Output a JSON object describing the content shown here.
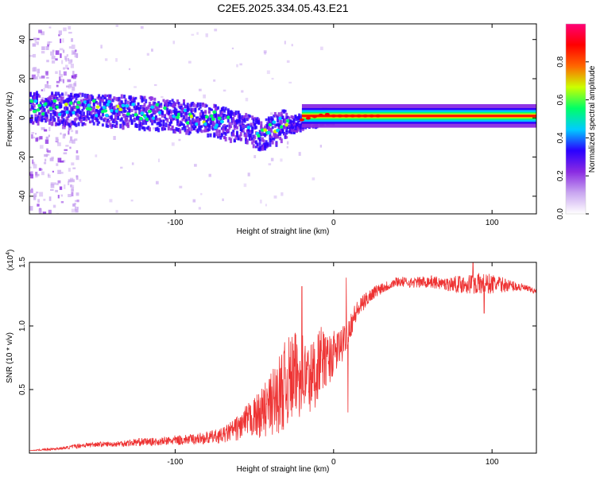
{
  "title": "C2E5.2025.334.05.43.E21",
  "chart_data": [
    {
      "type": "heatmap",
      "title": "C2E5.2025.334.05.43.E21",
      "xlabel": "Height of straight line (km)",
      "ylabel": "Frequency (Hz)",
      "xlim": [
        -192,
        128
      ],
      "ylim": [
        -49,
        48
      ],
      "x_ticks": [
        -100,
        0,
        100
      ],
      "x_tick_labels": [
        "-100",
        "0",
        "100"
      ],
      "y_ticks": [
        -40,
        -20,
        0,
        20,
        40
      ],
      "y_tick_labels": [
        "-40",
        "-20",
        "0",
        "20",
        "40"
      ],
      "colorbar": {
        "label": "Normalized spectral amplitude",
        "range": [
          0,
          1
        ],
        "ticks": [
          0.0,
          0.2,
          0.4,
          0.6,
          0.8
        ],
        "tick_labels": [
          "0.0",
          "0.2",
          "0.4",
          "0.6",
          "0.8"
        ],
        "colors": [
          "#ffffff",
          "#c9a6f0",
          "#8a2be2",
          "#2a00ff",
          "#00ccff",
          "#00ff66",
          "#ccff00",
          "#ff6600",
          "#ff0000",
          "#ff0077"
        ]
      },
      "ridge": {
        "x": [
          -192,
          -160,
          -130,
          -100,
          -80,
          -60,
          -45,
          -35,
          -25,
          -15,
          -5,
          0,
          10,
          30,
          60,
          90,
          128
        ],
        "frequency": [
          6,
          5,
          4,
          2,
          0,
          -4,
          -8,
          -4,
          -2,
          0,
          2,
          1,
          1,
          1,
          1,
          1,
          1
        ]
      }
    },
    {
      "type": "line",
      "xlabel": "Height of straight line (km)",
      "ylabel": "SNR (10 * v/v)",
      "y_multiplier_label": "(x10",
      "y_multiplier_exp": "4",
      "y_multiplier_close": ")",
      "xlim": [
        -192,
        128
      ],
      "ylim": [
        0,
        1.5
      ],
      "x_ticks": [
        -100,
        0,
        100
      ],
      "x_tick_labels": [
        "-100",
        "0",
        "100"
      ],
      "y_ticks": [
        0.5,
        1.0,
        1.5
      ],
      "y_tick_labels": [
        "0.5",
        "1.0",
        "1.5"
      ],
      "series": [
        {
          "color": "#ee3333",
          "x": [
            -192,
            -180,
            -170,
            -160,
            -150,
            -140,
            -130,
            -120,
            -110,
            -100,
            -90,
            -80,
            -70,
            -60,
            -55,
            -50,
            -45,
            -40,
            -35,
            -30,
            -25,
            -22,
            -20,
            -18,
            -15,
            -12,
            -10,
            -8,
            -5,
            -3,
            0,
            3,
            6,
            9,
            12,
            15,
            20,
            25,
            30,
            35,
            40,
            50,
            60,
            70,
            80,
            90,
            100,
            110,
            120,
            128
          ],
          "values": [
            0.02,
            0.03,
            0.04,
            0.06,
            0.07,
            0.07,
            0.08,
            0.09,
            0.09,
            0.1,
            0.11,
            0.12,
            0.14,
            0.2,
            0.25,
            0.28,
            0.32,
            0.38,
            0.45,
            0.55,
            0.6,
            0.62,
            0.64,
            0.6,
            0.58,
            0.62,
            0.7,
            0.75,
            0.72,
            0.74,
            0.78,
            0.82,
            0.86,
            0.95,
            1.05,
            1.12,
            1.2,
            1.26,
            1.3,
            1.32,
            1.35,
            1.34,
            1.35,
            1.33,
            1.33,
            1.33,
            1.33,
            1.32,
            1.3,
            1.27
          ],
          "noise": [
            0.0,
            0.01,
            0.01,
            0.02,
            0.02,
            0.02,
            0.03,
            0.03,
            0.03,
            0.04,
            0.04,
            0.05,
            0.06,
            0.1,
            0.13,
            0.16,
            0.2,
            0.25,
            0.3,
            0.35,
            0.35,
            0.35,
            0.35,
            0.32,
            0.3,
            0.3,
            0.28,
            0.25,
            0.22,
            0.2,
            0.18,
            0.16,
            0.14,
            0.12,
            0.1,
            0.08,
            0.06,
            0.05,
            0.05,
            0.04,
            0.04,
            0.04,
            0.05,
            0.05,
            0.07,
            0.09,
            0.08,
            0.05,
            0.03,
            0.02
          ],
          "spikes": [
            {
              "x": -20,
              "y": 1.31
            },
            {
              "x": 8,
              "y": 1.38
            },
            {
              "x": 9,
              "y": 0.32
            },
            {
              "x": 88,
              "y": 1.5
            },
            {
              "x": 95,
              "y": 1.1
            }
          ]
        }
      ]
    }
  ]
}
